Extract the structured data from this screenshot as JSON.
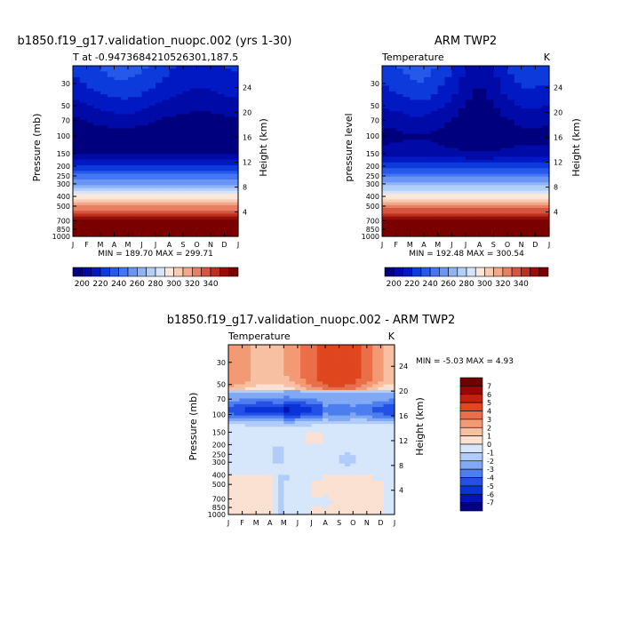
{
  "colors": {
    "temperature_scale": [
      "#00007f",
      "#000aa7",
      "#0019c3",
      "#0d3adb",
      "#2658ea",
      "#4475f2",
      "#6995f5",
      "#8fb3f7",
      "#b3cff9",
      "#d6e4fb",
      "#fbe6da",
      "#f8cbb3",
      "#f2a98a",
      "#e77f62",
      "#d7553e",
      "#bd3020",
      "#990d08",
      "#7a0000"
    ],
    "difference_scale": [
      "#000080",
      "#0015b5",
      "#0a33d6",
      "#2450e6",
      "#4d7ef0",
      "#80a8f5",
      "#b0ccf8",
      "#d6e6fb",
      "#fbe1d2",
      "#f8c0a2",
      "#f29a74",
      "#ea6f49",
      "#e0471f",
      "#c4200d",
      "#9a0606",
      "#700000"
    ]
  },
  "chart_data": [
    {
      "id": "model",
      "type": "heatmap",
      "title": "b1850.f19_g17.validation_nuopc.002 (yrs 1-30)",
      "subtitle_left": "T at -0.9473684210526301,187.5",
      "subtitle_right": "",
      "ylabel": "Pressure (mb)",
      "ylabel_right": "Height (km)",
      "x_ticks": [
        "J",
        "F",
        "M",
        "A",
        "M",
        "J",
        "J",
        "A",
        "S",
        "O",
        "N",
        "D",
        "J"
      ],
      "y_ticks": [
        30,
        50,
        70,
        100,
        150,
        200,
        250,
        300,
        400,
        500,
        700,
        850,
        1000
      ],
      "y_ticks_right": [
        24,
        20,
        16,
        12,
        8,
        4
      ],
      "ylim_mb": [
        20,
        1000
      ],
      "stats": "MIN = 189.70  MAX = 299.71",
      "contour_levels": [
        195,
        200,
        205,
        210,
        215,
        220,
        225,
        230,
        235,
        240,
        245,
        250,
        255,
        260,
        265,
        270,
        275
      ],
      "pressure_levels": [
        20,
        30,
        50,
        70,
        100,
        150,
        200,
        250,
        300,
        400,
        500,
        700,
        850,
        1000
      ],
      "monthly_anomaly_amplitude": [
        0,
        0.6,
        1.1,
        1.5,
        1.6,
        1.2,
        0.6,
        0,
        -0.4,
        -0.6,
        -0.5,
        -0.2,
        0
      ],
      "temperature_profile": [
        206,
        203,
        198,
        194,
        190,
        194,
        206,
        216,
        225,
        242,
        255,
        278,
        290,
        298
      ],
      "colorbar": {
        "labels": [
          200,
          220,
          240,
          260,
          280,
          300,
          320,
          340
        ],
        "start": 190,
        "step": 10
      }
    },
    {
      "id": "obs",
      "type": "heatmap",
      "title": "ARM TWP2",
      "subtitle_left": "Temperature",
      "subtitle_right": "K",
      "ylabel": "pressure level",
      "ylabel_right": "Height (km)",
      "x_ticks": [
        "J",
        "F",
        "M",
        "A",
        "M",
        "J",
        "J",
        "A",
        "S",
        "O",
        "N",
        "D",
        "J"
      ],
      "y_ticks": [
        30,
        50,
        70,
        100,
        150,
        200,
        250,
        300,
        400,
        500,
        700,
        850,
        1000
      ],
      "y_ticks_right": [
        24,
        20,
        16,
        12,
        8,
        4
      ],
      "ylim_mb": [
        20,
        1000
      ],
      "stats": "MIN = 192.48  MAX = 300.54",
      "contour_levels": [
        195,
        200,
        205,
        210,
        215,
        220,
        225,
        230,
        235,
        240,
        245,
        250,
        255,
        260,
        265,
        270,
        275
      ],
      "pressure_levels": [
        20,
        30,
        50,
        70,
        100,
        150,
        200,
        250,
        300,
        400,
        500,
        700,
        850,
        1000
      ],
      "monthly_anomaly_amplitude": [
        0,
        0.5,
        1.0,
        1.2,
        0.4,
        -0.6,
        -1.8,
        -2.6,
        -1.8,
        -0.6,
        0.2,
        0.2,
        0
      ],
      "temperature_profile": [
        208,
        205,
        200,
        196,
        193,
        197,
        208,
        218,
        227,
        243,
        256,
        279,
        291,
        299
      ],
      "colorbar": {
        "labels": [
          200,
          220,
          240,
          260,
          280,
          300,
          320,
          340
        ],
        "start": 190,
        "step": 10
      }
    },
    {
      "id": "diff",
      "type": "heatmap",
      "title": "b1850.f19_g17.validation_nuopc.002 - ARM TWP2",
      "subtitle_left": "Temperature",
      "subtitle_right": "K",
      "ylabel": "Pressure (mb)",
      "ylabel_right": "Height (km)",
      "x_ticks": [
        "J",
        "F",
        "M",
        "A",
        "M",
        "J",
        "J",
        "A",
        "S",
        "O",
        "N",
        "D",
        "J"
      ],
      "y_ticks": [
        30,
        50,
        70,
        100,
        150,
        200,
        250,
        300,
        400,
        500,
        700,
        850,
        1000
      ],
      "y_ticks_right": [
        24,
        20,
        16,
        12,
        8,
        4
      ],
      "ylim_mb": [
        20,
        1000
      ],
      "stats": "MIN =  -5.03  MAX =   4.93",
      "colorbar": {
        "labels": [
          -7,
          -6,
          -5,
          -4,
          -3,
          -2,
          -1,
          0,
          1,
          2,
          3,
          4,
          5,
          6,
          7
        ],
        "start": -8,
        "step": 1
      }
    }
  ]
}
